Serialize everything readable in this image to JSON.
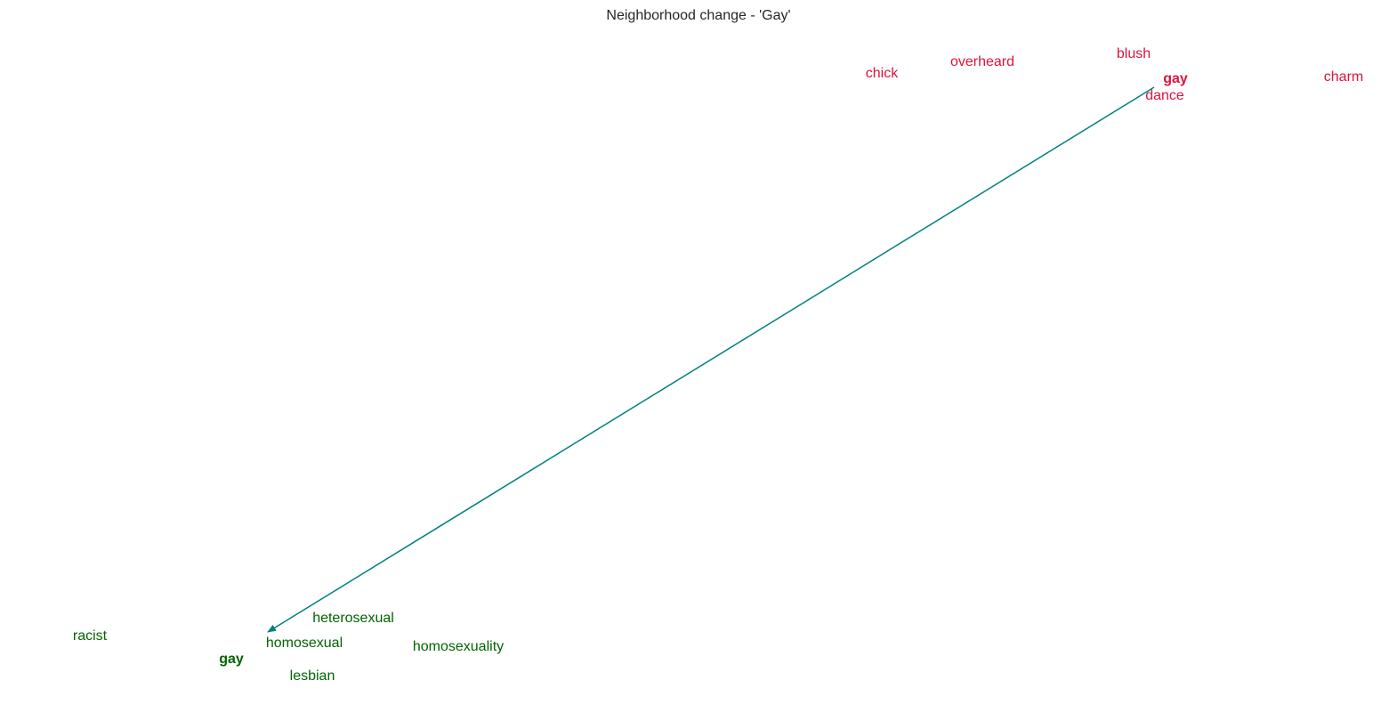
{
  "chart_data": {
    "type": "scatter",
    "title": "Neighborhood change - 'Gay'",
    "xlabel": "",
    "ylabel": "",
    "grid": false,
    "axes_visible": false,
    "colors": {
      "old_neighborhood": "#dc143c",
      "new_neighborhood": "#006400",
      "arrow": "#008080",
      "title": "#262626"
    },
    "series": [
      {
        "group": "old",
        "color": "#dc143c",
        "points": [
          {
            "label": "chick",
            "bold": false
          },
          {
            "label": "overheard",
            "bold": false
          },
          {
            "label": "blush",
            "bold": false
          },
          {
            "label": "gay",
            "bold": true
          },
          {
            "label": "dance",
            "bold": false
          },
          {
            "label": "charm",
            "bold": false
          }
        ]
      },
      {
        "group": "new",
        "color": "#006400",
        "points": [
          {
            "label": "heterosexual",
            "bold": false
          },
          {
            "label": "racist",
            "bold": false
          },
          {
            "label": "homosexual",
            "bold": false
          },
          {
            "label": "homosexuality",
            "bold": false
          },
          {
            "label": "gay",
            "bold": true
          },
          {
            "label": "lesbian",
            "bold": false
          }
        ]
      }
    ],
    "arrow": {
      "from": "gay (old)",
      "to": "gay (new)",
      "color": "#008080"
    }
  }
}
